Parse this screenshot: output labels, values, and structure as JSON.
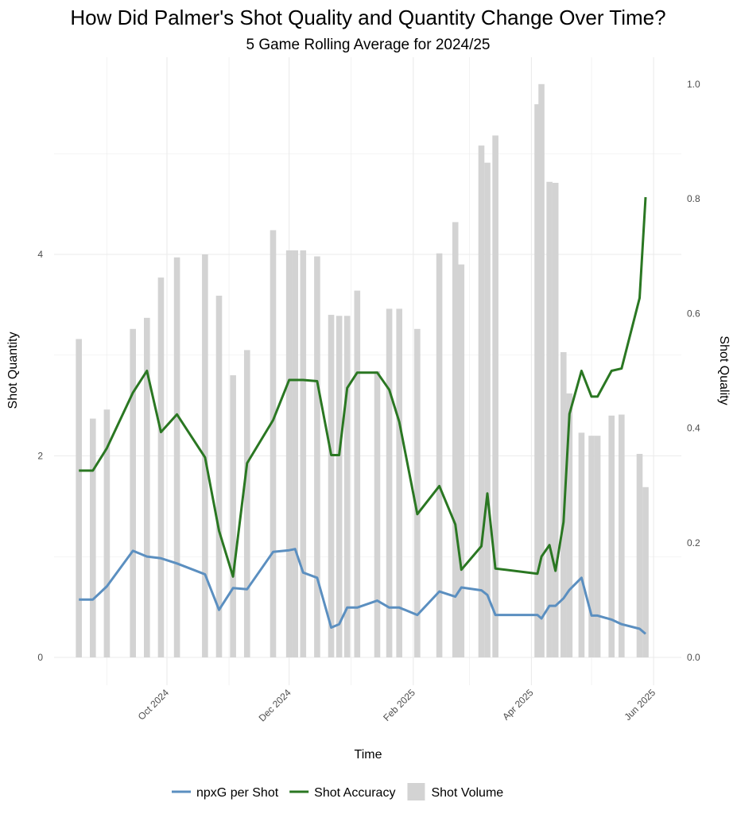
{
  "chart_data": {
    "type": "bar+line",
    "title": "How Did Palmer's Shot Quality and Quantity Change Over Time?",
    "subtitle": "5 Game Rolling Average for 2024/25",
    "xlabel": "Time",
    "ylabel_left": "Shot Quantity",
    "ylabel_right": "Shot Quality",
    "x_ticks": [
      {
        "date": "2024-10-01",
        "label": "Oct 2024"
      },
      {
        "date": "2024-12-01",
        "label": "Dec 2024"
      },
      {
        "date": "2025-02-01",
        "label": "Feb 2025"
      },
      {
        "date": "2025-04-01",
        "label": "Apr 2025"
      },
      {
        "date": "2025-06-01",
        "label": "Jun 2025"
      }
    ],
    "x_minor": [
      "2024-09-01",
      "2024-11-01",
      "2025-01-01",
      "2025-03-01",
      "2025-05-01"
    ],
    "y_left_ticks": [
      {
        "value": 0,
        "label": "0"
      },
      {
        "value": 2,
        "label": "2"
      },
      {
        "value": 4,
        "label": "4"
      }
    ],
    "y_right_ticks": [
      {
        "value": 0.0,
        "label": "0.0"
      },
      {
        "value": 0.2,
        "label": "0.2"
      },
      {
        "value": 0.4,
        "label": "0.4"
      },
      {
        "value": 0.6,
        "label": "0.6"
      },
      {
        "value": 0.8,
        "label": "0.8"
      },
      {
        "value": 1.0,
        "label": "1.0"
      }
    ],
    "grid": true,
    "legend_position": "bottom",
    "legend": [
      {
        "key": "npxg",
        "label": "npxG per Shot",
        "type": "line",
        "color": "#5b8fc0"
      },
      {
        "key": "accuracy",
        "label": "Shot Accuracy",
        "type": "line",
        "color": "#2a7722"
      },
      {
        "key": "volume",
        "label": "Shot Volume",
        "type": "bar",
        "color": "#d3d3d3"
      }
    ],
    "x": [
      "2024-08-18",
      "2024-08-25",
      "2024-09-01",
      "2024-09-14",
      "2024-09-21",
      "2024-09-28",
      "2024-10-06",
      "2024-10-20",
      "2024-10-27",
      "2024-11-03",
      "2024-11-10",
      "2024-11-23",
      "2024-12-01",
      "2024-12-04",
      "2024-12-08",
      "2024-12-15",
      "2024-12-22",
      "2024-12-26",
      "2024-12-30",
      "2025-01-04",
      "2025-01-14",
      "2025-01-20",
      "2025-01-25",
      "2025-02-03",
      "2025-02-14",
      "2025-02-22",
      "2025-02-25",
      "2025-03-07",
      "2025-03-10",
      "2025-03-14",
      "2025-04-04",
      "2025-04-06",
      "2025-04-10",
      "2025-04-13",
      "2025-04-17",
      "2025-04-20",
      "2025-04-26",
      "2025-05-01",
      "2025-05-04",
      "2025-05-11",
      "2025-05-16",
      "2025-05-25",
      "2025-05-28"
    ],
    "series": [
      {
        "name": "Shot Volume",
        "axis": "left",
        "values": [
          3.16,
          2.37,
          2.46,
          3.26,
          3.37,
          3.77,
          3.97,
          4.0,
          3.59,
          2.8,
          3.05,
          4.24,
          4.04,
          4.04,
          4.04,
          3.98,
          3.4,
          3.39,
          3.39,
          3.64,
          2.84,
          3.46,
          3.46,
          3.26,
          4.01,
          4.32,
          3.9,
          5.08,
          4.91,
          5.18,
          5.49,
          5.69,
          4.72,
          4.71,
          3.03,
          2.62,
          2.23,
          2.2,
          2.2,
          2.4,
          2.41,
          2.02,
          1.69
        ]
      },
      {
        "name": "Shot Accuracy",
        "axis": "right",
        "values": [
          0.326,
          0.326,
          0.365,
          0.462,
          0.5,
          0.393,
          0.424,
          0.349,
          0.221,
          0.141,
          0.339,
          0.414,
          0.484,
          0.484,
          0.484,
          0.482,
          0.353,
          0.353,
          0.47,
          0.497,
          0.497,
          0.467,
          0.411,
          0.25,
          0.299,
          0.232,
          0.153,
          0.194,
          0.286,
          0.155,
          0.146,
          0.176,
          0.196,
          0.151,
          0.236,
          0.425,
          0.5,
          0.455,
          0.455,
          0.5,
          0.504,
          0.627,
          0.803
        ]
      },
      {
        "name": "npxG per Shot",
        "axis": "right",
        "values": [
          0.101,
          0.101,
          0.124,
          0.186,
          0.176,
          0.173,
          0.164,
          0.145,
          0.083,
          0.121,
          0.119,
          0.184,
          0.187,
          0.189,
          0.148,
          0.139,
          0.052,
          0.058,
          0.087,
          0.087,
          0.099,
          0.087,
          0.087,
          0.074,
          0.115,
          0.106,
          0.122,
          0.117,
          0.109,
          0.074,
          0.074,
          0.068,
          0.09,
          0.09,
          0.103,
          0.118,
          0.139,
          0.073,
          0.073,
          0.066,
          0.058,
          0.05,
          0.041
        ]
      }
    ]
  }
}
